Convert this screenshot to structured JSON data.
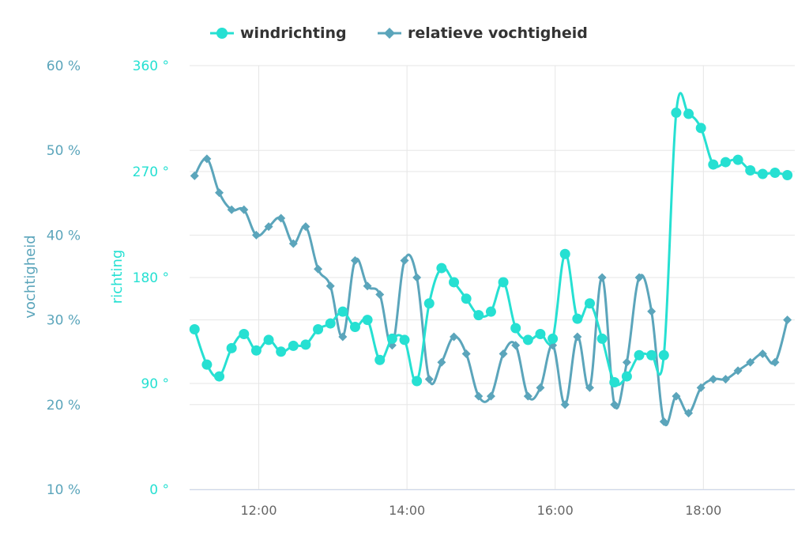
{
  "colors": {
    "wind": "#26e0d2",
    "humidity": "#5ba5bb",
    "grid": "#e6e6e6"
  },
  "chart_data": {
    "type": "line",
    "legend_position": "top",
    "grid": true,
    "x_axis": {
      "ticks": [
        "12:00",
        "14:00",
        "16:00",
        "18:00"
      ],
      "tick_minutes": [
        720,
        840,
        960,
        1080
      ],
      "range_minutes": [
        664,
        1154
      ]
    },
    "y_axis_left": {
      "label": "vochtigheid",
      "unit": "%",
      "ticks": [
        "10 %",
        "20 %",
        "30 %",
        "40 %",
        "50 %",
        "60 %"
      ],
      "range": [
        10,
        60
      ]
    },
    "y_axis_right": {
      "label": "richting",
      "unit": "°",
      "ticks": [
        "0 °",
        "90 °",
        "180 °",
        "270 °",
        "360 °"
      ],
      "range": [
        0,
        360
      ]
    },
    "series": [
      {
        "name": "windrichting",
        "marker": "circle",
        "axis": "richting",
        "minutes": [
          668,
          678,
          688,
          698,
          708,
          718,
          728,
          738,
          748,
          758,
          768,
          778,
          788,
          798,
          808,
          818,
          828,
          838,
          848,
          858,
          868,
          878,
          888,
          898,
          908,
          918,
          928,
          938,
          948,
          958,
          968,
          978,
          988,
          998,
          1008,
          1018,
          1028,
          1038,
          1048,
          1058,
          1068,
          1078,
          1088,
          1098,
          1108,
          1118,
          1128,
          1138,
          1148
        ],
        "values": [
          136,
          106,
          96,
          120,
          132,
          118,
          127,
          117,
          122,
          123,
          136,
          141,
          151,
          138,
          144,
          110,
          128,
          127,
          92,
          158,
          188,
          176,
          162,
          148,
          151,
          176,
          137,
          127,
          132,
          128,
          200,
          145,
          158,
          128,
          91,
          96,
          114,
          114,
          114,
          320,
          319,
          307,
          276,
          278,
          280,
          271,
          268,
          269,
          267
        ]
      },
      {
        "name": "relatieve vochtigheid",
        "marker": "diamond",
        "axis": "vochtigheid",
        "minutes": [
          668,
          678,
          688,
          698,
          708,
          718,
          728,
          738,
          748,
          758,
          768,
          778,
          788,
          798,
          808,
          818,
          828,
          838,
          848,
          858,
          868,
          878,
          888,
          898,
          908,
          918,
          928,
          938,
          948,
          958,
          968,
          978,
          988,
          998,
          1008,
          1018,
          1028,
          1038,
          1048,
          1058,
          1068,
          1078,
          1088,
          1098,
          1108,
          1118,
          1128,
          1138,
          1148
        ],
        "values": [
          47,
          49,
          45,
          43,
          43,
          40,
          41,
          42,
          39,
          41,
          36,
          34,
          28,
          37,
          34,
          33,
          27,
          37,
          35,
          23,
          25,
          28,
          26,
          21,
          21,
          26,
          27,
          21,
          22,
          27,
          20,
          28,
          22,
          35,
          20,
          25,
          35,
          31,
          18,
          21,
          19,
          22,
          23,
          23,
          24,
          25,
          26,
          25,
          30
        ]
      }
    ]
  }
}
